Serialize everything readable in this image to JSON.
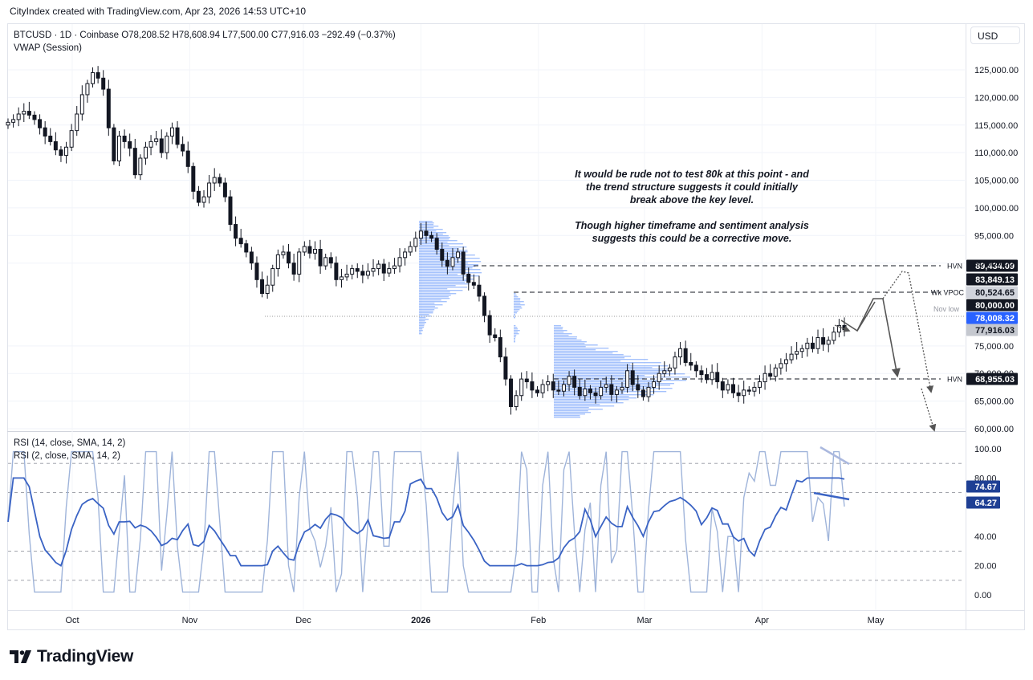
{
  "header": {
    "text": "CityIndex created with TradingView.com, Apr 23, 2026 14:53 UTC+10"
  },
  "legend": {
    "symbol_line": "BTCUSD · 1D · Coinbase  O78,208.52  H78,608.94  L77,500.00  C77,916.03  −292.49 (−0.37%)",
    "indicator": "VWAP (Session)",
    "rsi1": "RSI (14, close, SMA, 14, 2)",
    "rsi2": "RSI (2, close, SMA, 14, 2)"
  },
  "currency": "USD",
  "annotation": {
    "p1": "It would be rude not to test 80k at this point - and the trend structure suggests it could initially break above the key level.",
    "p2": "Though higher timeframe and sentiment analysis suggests this could be a corrective move."
  },
  "logo": {
    "text": "TradingView"
  },
  "colors": {
    "up": "#131722",
    "down": "#131722",
    "volume_profile": "#5b8ff9",
    "rsi14": "#3a63c4",
    "rsi2": "#9fb4da",
    "price_tag_dark": "#131722",
    "price_tag_grey": "#c5c8cf",
    "price_tag_blue": "#2962ff",
    "rsi_tag": "#1e3f94"
  },
  "chart_data": {
    "type": "candlestick",
    "symbol": "BTCUSD",
    "timeframe": "1D",
    "exchange": "Coinbase",
    "last": {
      "open": 78208.52,
      "high": 78608.94,
      "low": 77500.0,
      "close": 77916.03,
      "change": -292.49,
      "change_pct": -0.37
    },
    "y_ticks": [
      "125,000.00",
      "120,000.00",
      "115,000.00",
      "110,000.00",
      "105,000.00",
      "100,000.00",
      "95,000.00",
      "90,000.00",
      "75,000.00",
      "70,000.00",
      "65,000.00",
      "60,000.00"
    ],
    "x_ticks": [
      {
        "label": "Oct",
        "bold": false,
        "date": "2025-10-01"
      },
      {
        "label": "Nov",
        "bold": false,
        "date": "2025-11-01"
      },
      {
        "label": "Dec",
        "bold": false,
        "date": "2025-12-01"
      },
      {
        "label": "2026",
        "bold": true,
        "date": "2026-01-01"
      },
      {
        "label": "Feb",
        "bold": false,
        "date": "2026-02-01"
      },
      {
        "label": "Mar",
        "bold": false,
        "date": "2026-03-01"
      },
      {
        "label": "Apr",
        "bold": false,
        "date": "2026-04-01"
      },
      {
        "label": "May",
        "bold": false,
        "date": "2026-05-01"
      }
    ],
    "closes": [
      115500,
      116000,
      117000,
      117500,
      116800,
      116000,
      114500,
      113000,
      112000,
      110500,
      109500,
      111000,
      114000,
      117000,
      120500,
      122500,
      124500,
      123500,
      121500,
      114500,
      108500,
      113000,
      112000,
      110800,
      106000,
      109000,
      111000,
      112000,
      112500,
      110000,
      113000,
      114500,
      111500,
      110300,
      107500,
      103000,
      101000,
      102000,
      104500,
      105500,
      104500,
      102000,
      97000,
      94500,
      93500,
      92000,
      90000,
      87000,
      84500,
      86000,
      89000,
      91500,
      92000,
      90000,
      88000,
      92000,
      93000,
      91800,
      92500,
      89500,
      91000,
      90000,
      87000,
      87500,
      88000,
      89000,
      88500,
      87800,
      88500,
      89000,
      89800,
      88200,
      89000,
      89500,
      91000,
      92000,
      93000,
      94500,
      95800,
      95000,
      94500,
      92500,
      90500,
      89400,
      91000,
      92000,
      88000,
      86500,
      86000,
      84000,
      80500,
      77000,
      76500,
      73000,
      69000,
      64000,
      66000,
      69000,
      68500,
      67000,
      66500,
      68000,
      68500,
      67000,
      66800,
      68000,
      69500,
      67500,
      66000,
      67200,
      66500,
      66000,
      67500,
      68000,
      66200,
      67000,
      67500,
      70500,
      68000,
      67000,
      65800,
      67500,
      68500,
      70000,
      70500,
      71000,
      73000,
      74500,
      72000,
      71500,
      70500,
      69800,
      68900,
      70200,
      68500,
      67000,
      68000,
      66500,
      66000,
      67000,
      66800,
      67500,
      68500,
      70000,
      69500,
      71000,
      71800,
      72500,
      73500,
      74000,
      74500,
      75500,
      74500,
      76500,
      75300,
      76000,
      77500,
      78700,
      77916.03
    ],
    "closes_note": "approximate daily closes read off the chart from mid-Sep 2025 to Apr 23 2026",
    "levels": [
      {
        "label": "HVN",
        "price": 89434.09,
        "tag": "89,434.09",
        "tag_color": "#131722",
        "text_color": "#ffffff"
      },
      {
        "label": "",
        "price": 83849.13,
        "tag": "83,849.13",
        "tag_color": "#131722",
        "text_color": "#ffffff"
      },
      {
        "label": "Wk VPOC",
        "price": 80524.65,
        "tag": "80,524.65",
        "tag_color": "#d1d4dc",
        "text_color": "#131722"
      },
      {
        "label": "",
        "price": 80000.0,
        "tag": "80,000.00",
        "tag_color": "#131722",
        "text_color": "#ffffff"
      },
      {
        "label": "Nov low",
        "price": 78008.32,
        "tag": "78,008.32",
        "tag_color": "#2962ff",
        "text_color": "#ffffff"
      },
      {
        "label": "",
        "price": 77916.03,
        "tag": "77,916.03",
        "tag_color": "#c5c8cf",
        "text_color": "#131722"
      },
      {
        "label": "HVN",
        "price": 68955.03,
        "tag": "68,955.03",
        "tag_color": "#131722",
        "text_color": "#ffffff"
      }
    ],
    "rsi": {
      "y_ticks": [
        "100.00",
        "80.00",
        "40.00",
        "20.00",
        "0.00"
      ],
      "levels": [
        90,
        70,
        30,
        10
      ],
      "series": [
        {
          "name": "RSI (14, close, SMA, 14, 2)",
          "last": 64.27,
          "tag": "64.27",
          "tag_color": "#1e3f94"
        },
        {
          "name": "RSI (2, close, SMA, 14, 2)",
          "last": 74.67,
          "tag": "74.67",
          "tag_color": "#1e3f94"
        }
      ]
    }
  }
}
